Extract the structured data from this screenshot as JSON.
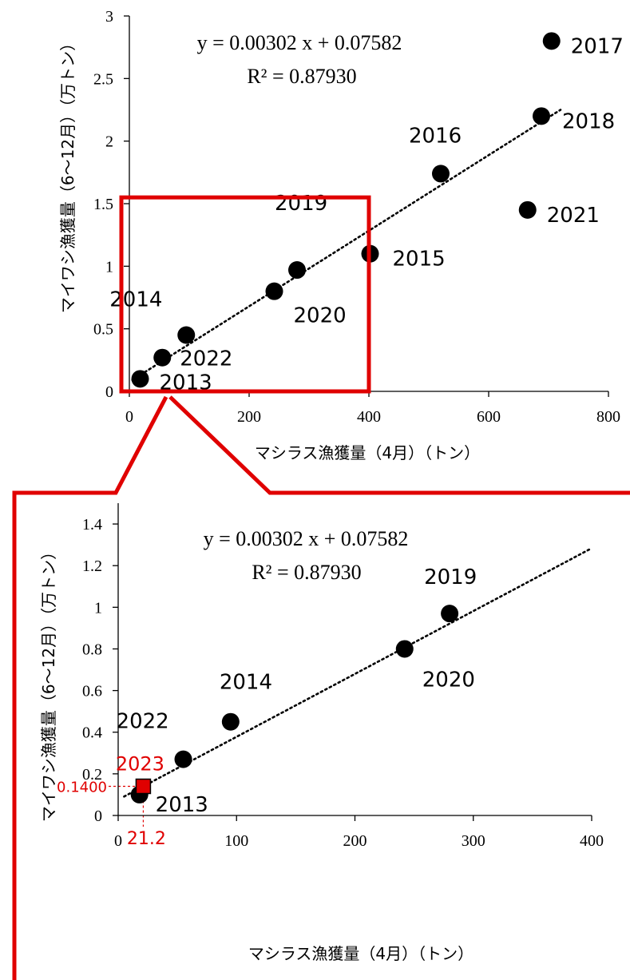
{
  "chart_data": [
    {
      "type": "scatter",
      "xlabel": "マシラス漁獲量（4月）（トン）",
      "ylabel": "マイワシ漁獲量（6〜12月）（万トン）",
      "xlim": [
        0,
        800
      ],
      "ylim": [
        0,
        3
      ],
      "xticks": [
        0,
        200,
        400,
        600,
        800
      ],
      "yticks": [
        0,
        0.5,
        1,
        1.5,
        2,
        2.5,
        3
      ],
      "x_tick_labels": [
        "0",
        "200",
        "400",
        "600",
        "800"
      ],
      "y_tick_labels": [
        "0",
        "0.5",
        "1",
        "1.5",
        "2",
        "2.5",
        "3"
      ],
      "equation": "y = 0.00302 x + 0.07582",
      "r_squared": "R² = 0.87930",
      "trendline": {
        "slope": 0.00302,
        "intercept": 0.07582,
        "style": "dotted"
      },
      "points": [
        {
          "year": "2013",
          "x": 18,
          "y": 0.1
        },
        {
          "year": "2022",
          "x": 55,
          "y": 0.27
        },
        {
          "year": "2014",
          "x": 95,
          "y": 0.45
        },
        {
          "year": "2020",
          "x": 242,
          "y": 0.8
        },
        {
          "year": "2019",
          "x": 280,
          "y": 0.97
        },
        {
          "year": "2015",
          "x": 402,
          "y": 1.1
        },
        {
          "year": "2016",
          "x": 520,
          "y": 1.74
        },
        {
          "year": "2021",
          "x": 665,
          "y": 1.45
        },
        {
          "year": "2018",
          "x": 688,
          "y": 2.2
        },
        {
          "year": "2017",
          "x": 705,
          "y": 2.8
        }
      ],
      "zoom_box": {
        "x_range": [
          0,
          400
        ],
        "y_range": [
          0,
          1.55
        ],
        "color": "#e00000"
      }
    },
    {
      "type": "scatter",
      "xlabel": "マシラス漁獲量（4月）（トン）",
      "ylabel": "マイワシ漁獲量（6〜12月）（万トン）",
      "xlim": [
        0,
        400
      ],
      "ylim": [
        0,
        1.5
      ],
      "xticks": [
        0,
        100,
        200,
        300,
        400
      ],
      "yticks": [
        0,
        0.2,
        0.4,
        0.6,
        0.8,
        1,
        1.2,
        1.4
      ],
      "x_tick_labels": [
        "0",
        "100",
        "200",
        "300",
        "400"
      ],
      "y_tick_labels": [
        "0",
        "0.2",
        "0.4",
        "0.6",
        "0.8",
        "1",
        "1.2",
        "1.4"
      ],
      "equation": "y = 0.00302 x + 0.07582",
      "r_squared": "R² = 0.87930",
      "trendline": {
        "slope": 0.00302,
        "intercept": 0.07582,
        "style": "dotted"
      },
      "points": [
        {
          "year": "2013",
          "x": 18,
          "y": 0.1
        },
        {
          "year": "2022",
          "x": 55,
          "y": 0.27
        },
        {
          "year": "2014",
          "x": 95,
          "y": 0.45
        },
        {
          "year": "2020",
          "x": 242,
          "y": 0.8
        },
        {
          "year": "2019",
          "x": 280,
          "y": 0.97
        }
      ],
      "prediction": {
        "year": "2023",
        "x": 21.2,
        "y": 0.14,
        "x_label": "21.2",
        "y_label": "0.1400",
        "color": "#e00000"
      }
    }
  ],
  "colors": {
    "accent": "#e00000",
    "marker": "#000000"
  }
}
